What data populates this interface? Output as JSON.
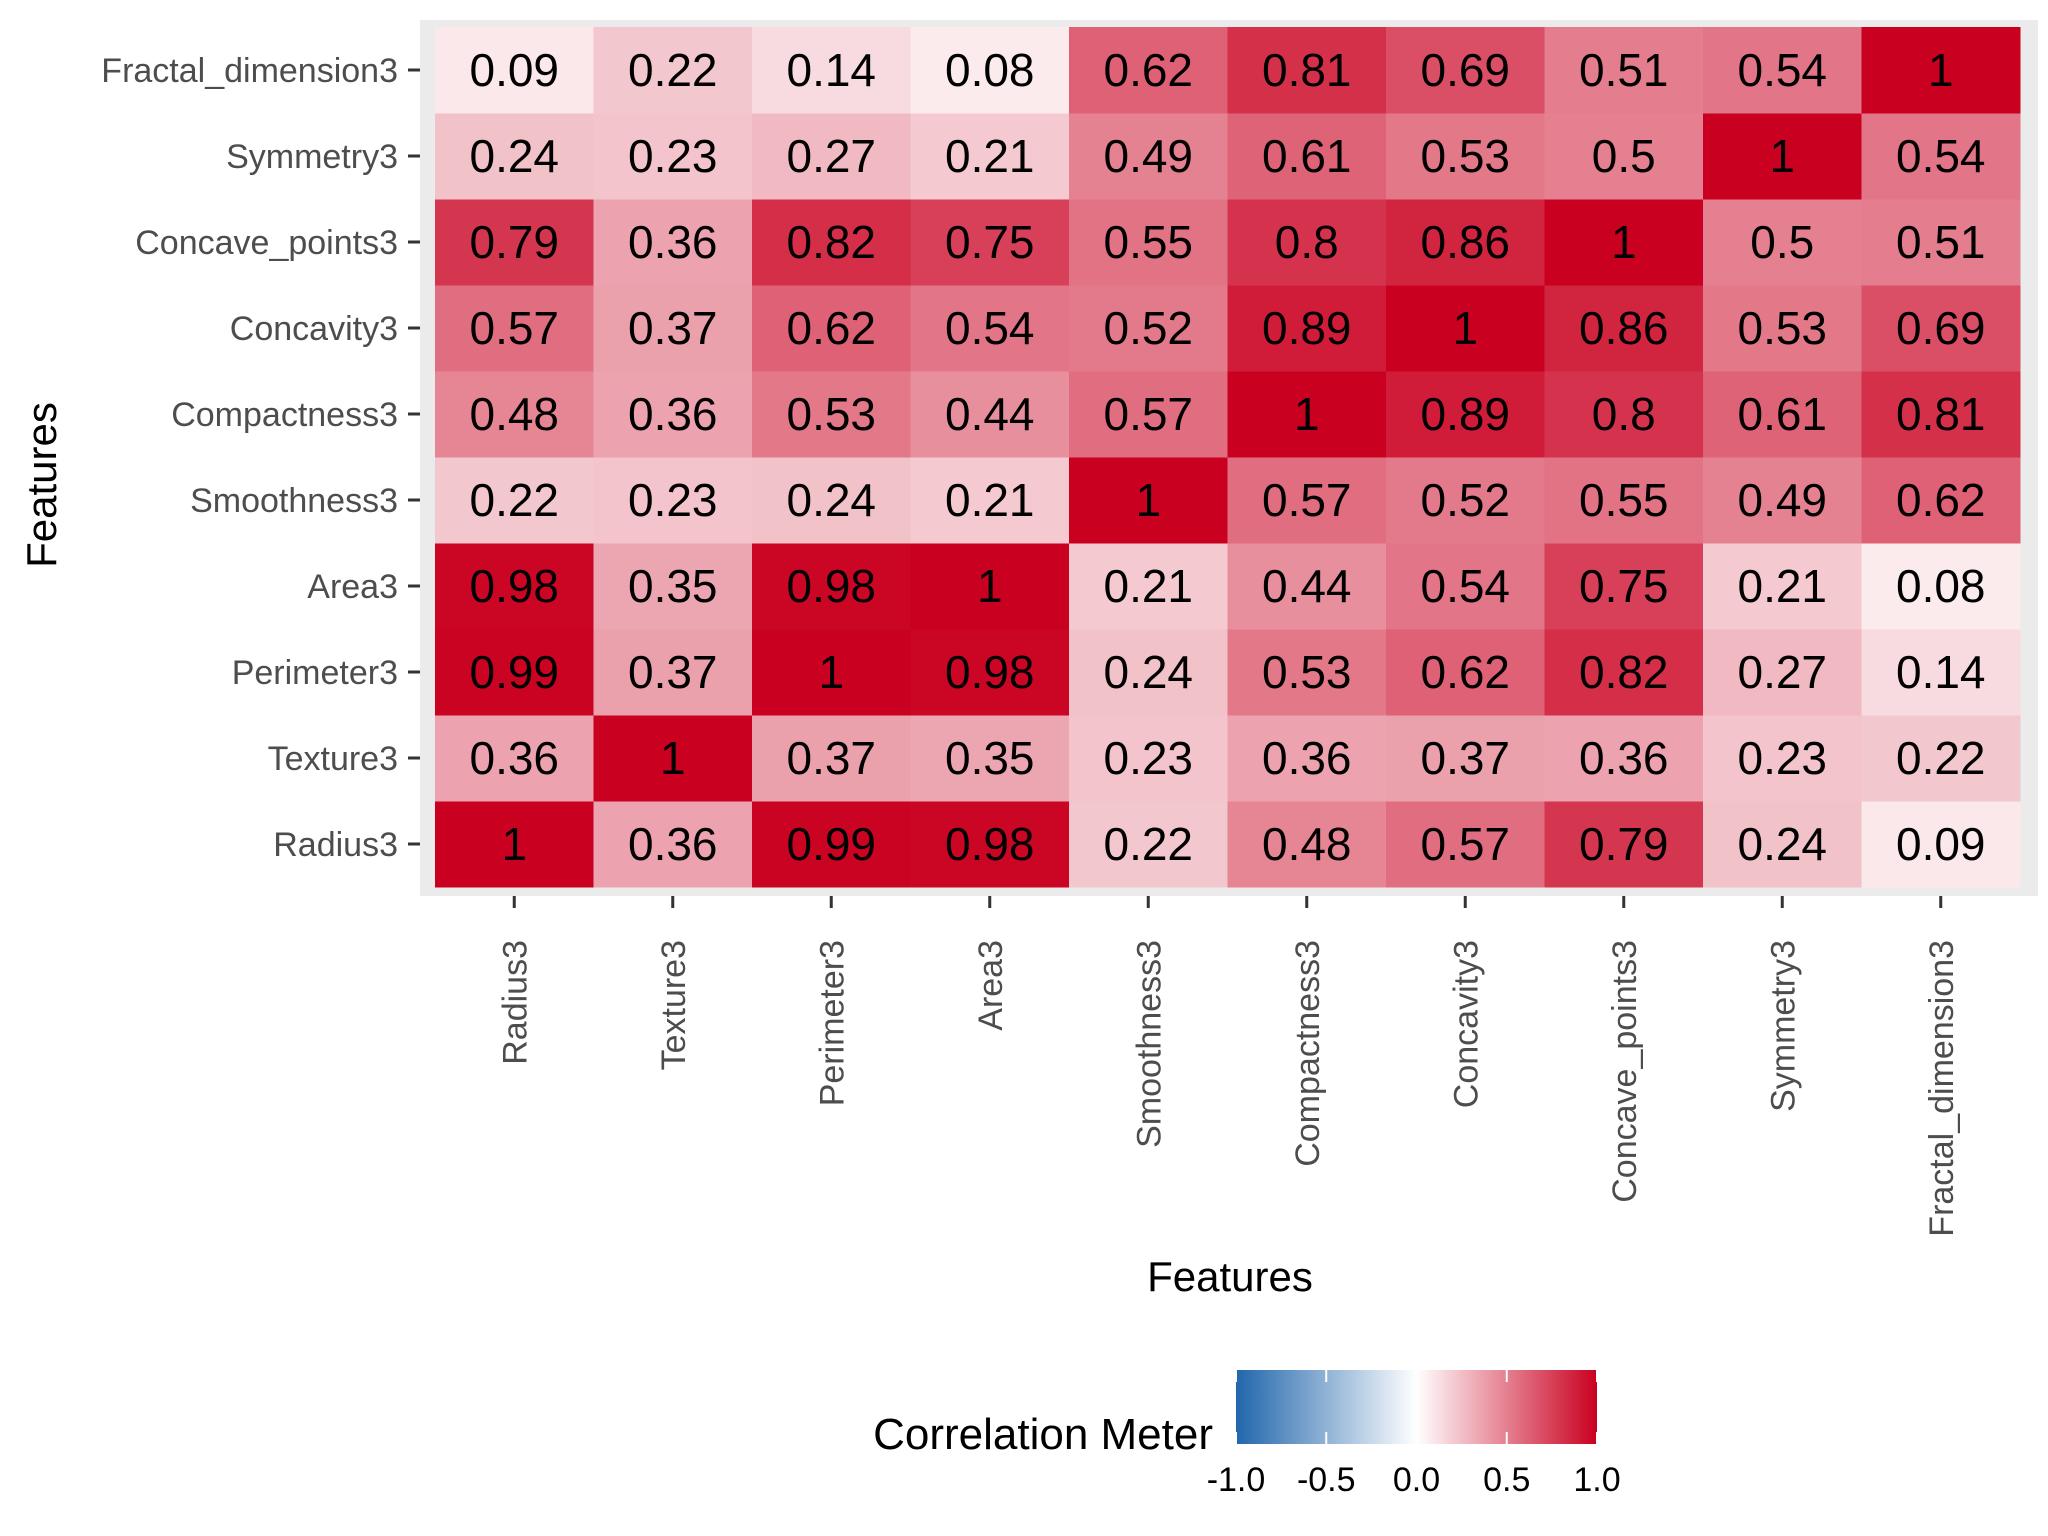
{
  "chart_data": {
    "type": "heatmap",
    "title": "",
    "xlabel": "Features",
    "ylabel": "Features",
    "x_categories": [
      "Radius3",
      "Texture3",
      "Perimeter3",
      "Area3",
      "Smoothness3",
      "Compactness3",
      "Concavity3",
      "Concave_points3",
      "Symmetry3",
      "Fractal_dimension3"
    ],
    "y_categories": [
      "Radius3",
      "Texture3",
      "Perimeter3",
      "Area3",
      "Smoothness3",
      "Compactness3",
      "Concavity3",
      "Concave_points3",
      "Symmetry3",
      "Fractal_dimension3"
    ],
    "values": [
      [
        1,
        0.36,
        0.99,
        0.98,
        0.22,
        0.48,
        0.57,
        0.79,
        0.24,
        0.09
      ],
      [
        0.36,
        1,
        0.37,
        0.35,
        0.23,
        0.36,
        0.37,
        0.36,
        0.23,
        0.22
      ],
      [
        0.99,
        0.37,
        1,
        0.98,
        0.24,
        0.53,
        0.62,
        0.82,
        0.27,
        0.14
      ],
      [
        0.98,
        0.35,
        0.98,
        1,
        0.21,
        0.44,
        0.54,
        0.75,
        0.21,
        0.08
      ],
      [
        0.22,
        0.23,
        0.24,
        0.21,
        1,
        0.57,
        0.52,
        0.55,
        0.49,
        0.62
      ],
      [
        0.48,
        0.36,
        0.53,
        0.44,
        0.57,
        1,
        0.89,
        0.8,
        0.61,
        0.81
      ],
      [
        0.57,
        0.37,
        0.62,
        0.54,
        0.52,
        0.89,
        1,
        0.86,
        0.53,
        0.69
      ],
      [
        0.79,
        0.36,
        0.82,
        0.75,
        0.55,
        0.8,
        0.86,
        1,
        0.5,
        0.51
      ],
      [
        0.24,
        0.23,
        0.27,
        0.21,
        0.49,
        0.61,
        0.53,
        0.5,
        1,
        0.54
      ],
      [
        0.09,
        0.22,
        0.14,
        0.08,
        0.62,
        0.81,
        0.69,
        0.51,
        0.54,
        1
      ]
    ],
    "color_scale": {
      "low": "#2166ac",
      "mid": "#ffffff",
      "high": "#ca0020",
      "limits": [
        -1.0,
        1.0
      ]
    },
    "legend": {
      "title": "Correlation Meter",
      "position": "bottom",
      "ticks": [
        "-1.0",
        "-0.5",
        "0.0",
        "0.5",
        "1.0"
      ]
    },
    "panel_background": "#ebebeb",
    "grid": true
  }
}
